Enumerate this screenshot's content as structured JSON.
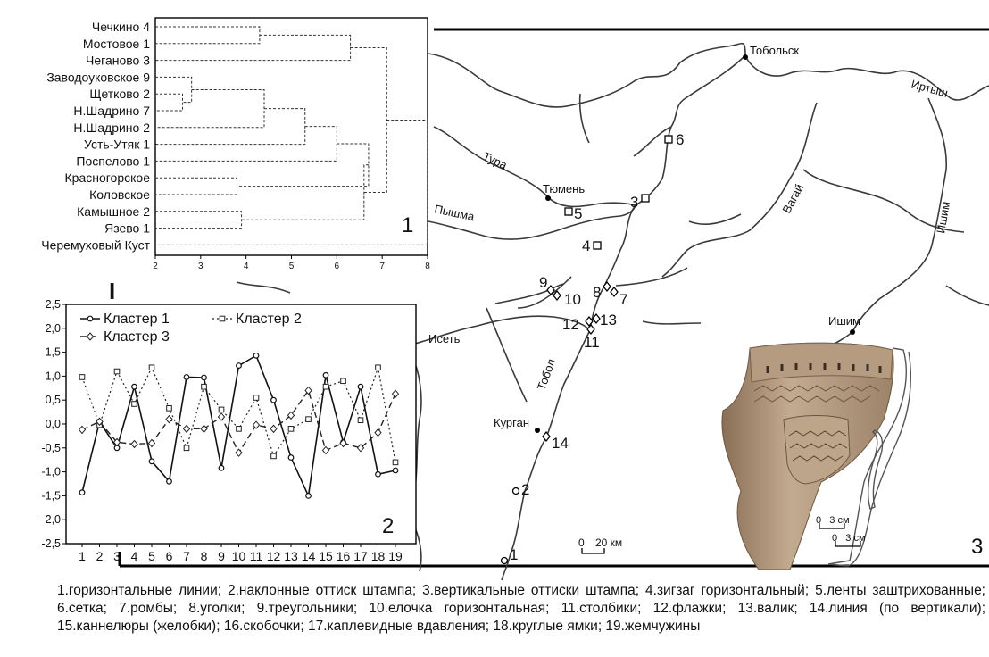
{
  "panel_labels": {
    "dendrogram": "1",
    "line_chart": "2",
    "vessel": "3",
    "section_marker": "I"
  },
  "chart_data": [
    {
      "type": "dendrogram",
      "leaves": [
        "Чечкино 4",
        "Мостовое 1",
        "Чеганово 3",
        "Заводоуковское 9",
        "Щетково 2",
        "Н.Шадрино 7",
        "Н.Шадрино 2",
        "Усть-Утяк 1",
        "Поспелово 1",
        "Красногорское",
        "Коловское",
        "Камышное 2",
        "Язево 1",
        "Черемуховый Куст"
      ],
      "xticks": [
        "2",
        "3",
        "4",
        "5",
        "6",
        "7",
        "8"
      ],
      "xlim": [
        2,
        8
      ],
      "merges": [
        {
          "a": 0,
          "b": 1,
          "h": 4.3
        },
        {
          "a": "m0",
          "b": 2,
          "h": 6.3
        },
        {
          "a": 4,
          "b": 5,
          "h": 2.6
        },
        {
          "a": 3,
          "b": "m2",
          "h": 2.8
        },
        {
          "a": "m3",
          "b": 6,
          "h": 4.4
        },
        {
          "a": "m4",
          "b": 7,
          "h": 5.3
        },
        {
          "a": "m5",
          "b": 8,
          "h": 6.0
        },
        {
          "a": 9,
          "b": 10,
          "h": 3.8
        },
        {
          "a": "m6",
          "b": "m7",
          "h": 6.7
        },
        {
          "a": 11,
          "b": 12,
          "h": 3.9
        },
        {
          "a": "m8",
          "b": "m9",
          "h": 6.6
        },
        {
          "a": "m1",
          "b": "m10",
          "h": 7.1
        },
        {
          "a": "m11",
          "b": 13,
          "h": 8.0
        }
      ]
    },
    {
      "type": "line",
      "x": [
        1,
        2,
        3,
        4,
        5,
        6,
        7,
        8,
        9,
        10,
        11,
        12,
        13,
        14,
        15,
        16,
        17,
        18,
        19
      ],
      "xticks": [
        "1",
        "2",
        "3",
        "4",
        "5",
        "6",
        "7",
        "8",
        "9",
        "10",
        "11",
        "12",
        "13",
        "14",
        "15",
        "16",
        "17",
        "18",
        "19"
      ],
      "yticks": [
        "2,5",
        "2,0",
        "1,5",
        "1,0",
        "0,5",
        "0,0",
        "-0,5",
        "-1,0",
        "-1,5",
        "-2,0",
        "-2,5"
      ],
      "ylim": [
        -2.5,
        2.5
      ],
      "legend_position": "top-left",
      "series": [
        {
          "name": "Кластер 1",
          "style": "solid-circle",
          "values": [
            -1.43,
            0.05,
            -0.5,
            0.78,
            -0.78,
            -1.2,
            0.98,
            0.97,
            -0.92,
            1.22,
            1.43,
            0.5,
            -0.7,
            -1.5,
            1.02,
            -0.38,
            0.78,
            -1.05,
            -0.97
          ]
        },
        {
          "name": "Кластер 2",
          "style": "dotted-square",
          "values": [
            0.98,
            -0.02,
            1.1,
            0.42,
            1.18,
            0.33,
            -0.5,
            0.78,
            0.3,
            -0.1,
            0.55,
            -0.67,
            -0.1,
            0.1,
            0.78,
            0.9,
            0.08,
            1.18,
            -0.8
          ]
        },
        {
          "name": "Кластер 3",
          "style": "dashed-diamond",
          "values": [
            -0.12,
            0.05,
            -0.38,
            -0.42,
            -0.4,
            0.1,
            -0.1,
            -0.1,
            0.15,
            -0.6,
            -0.02,
            -0.1,
            0.18,
            0.7,
            -0.55,
            -0.4,
            -0.5,
            -0.18,
            0.63
          ]
        }
      ]
    }
  ],
  "map": {
    "rivers": [
      "Тура",
      "Пышма",
      "Исеть",
      "Тобол",
      "Вагай",
      "Ишим",
      "Иртыш"
    ],
    "cities": [
      "Тобольск",
      "Тюмень",
      "Курган",
      "Ишим"
    ],
    "scale": {
      "zero": "0",
      "label": "20 км"
    },
    "site_numbers": [
      "1",
      "2",
      "3",
      "4",
      "5",
      "6",
      "7",
      "8",
      "9",
      "10",
      "11",
      "12",
      "13",
      "14"
    ]
  },
  "vessel_scales": [
    "0   3 см",
    "0   3 см"
  ],
  "caption": "1.горизонтальные линии; 2.наклонные оттиск штампа; 3.вертикальные оттиски штампа; 4.зигзаг горизонтальный; 5.ленты заштрихованные; 6.сетка; 7.ромбы; 8.уголки; 9.треугольники; 10.елочка горизонтальная; 11.столбики; 12.флажки; 13.валик; 14.линия (по вертикали); 15.каннелюры (желобки); 16.скобочки; 17.каплевидные вдавления; 18.круглые ямки; 19.жемчужины"
}
